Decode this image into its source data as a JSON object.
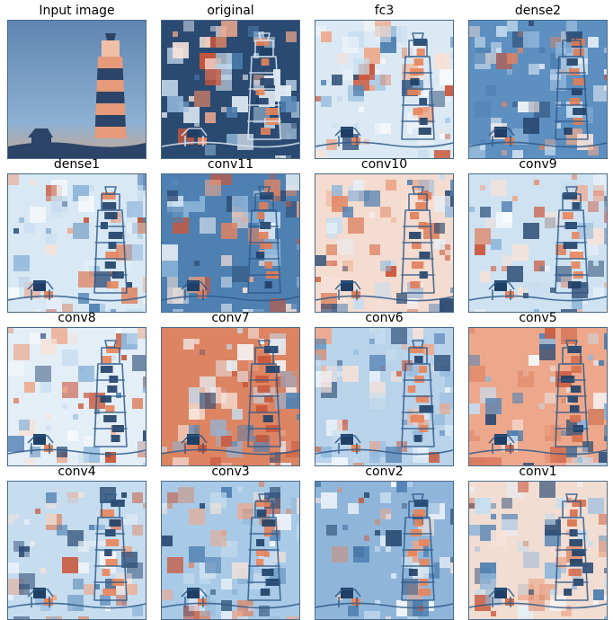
{
  "figure": {
    "panels": [
      {
        "title": "Input image",
        "kind": "photo",
        "base": "#6b93bb"
      },
      {
        "title": "original",
        "kind": "map",
        "base": "#2a4a72",
        "accent": "#e8845a"
      },
      {
        "title": "fc3",
        "kind": "map",
        "base": "#dbe9f4",
        "accent": "#e8845a"
      },
      {
        "title": "dense2",
        "kind": "map",
        "base": "#5d8fc0",
        "accent": "#e07d56"
      },
      {
        "title": "dense1",
        "kind": "map",
        "base": "#d8e8f4",
        "accent": "#e8845a"
      },
      {
        "title": "conv11",
        "kind": "map",
        "base": "#4f80b2",
        "accent": "#e07d56"
      },
      {
        "title": "conv10",
        "kind": "map",
        "base": "#f4dcd0",
        "accent": "#e07d56"
      },
      {
        "title": "conv9",
        "kind": "map",
        "base": "#cfe2f1",
        "accent": "#e8845a"
      },
      {
        "title": "conv8",
        "kind": "map",
        "base": "#e3eef7",
        "accent": "#e8845a"
      },
      {
        "title": "conv7",
        "kind": "map",
        "base": "#dd8462",
        "accent": "#c9563a"
      },
      {
        "title": "conv6",
        "kind": "map",
        "base": "#b8d3ea",
        "accent": "#e8845a"
      },
      {
        "title": "conv5",
        "kind": "map",
        "base": "#eda88c",
        "accent": "#d66f4c"
      },
      {
        "title": "conv4",
        "kind": "map",
        "base": "#c6ddef",
        "accent": "#e8845a"
      },
      {
        "title": "conv3",
        "kind": "map",
        "base": "#a9cae6",
        "accent": "#e8845a"
      },
      {
        "title": "conv2",
        "kind": "map",
        "base": "#8fb6da",
        "accent": "#e8845a"
      },
      {
        "title": "conv1",
        "kind": "map",
        "base": "#f2ddd2",
        "accent": "#d66f4c"
      }
    ]
  }
}
